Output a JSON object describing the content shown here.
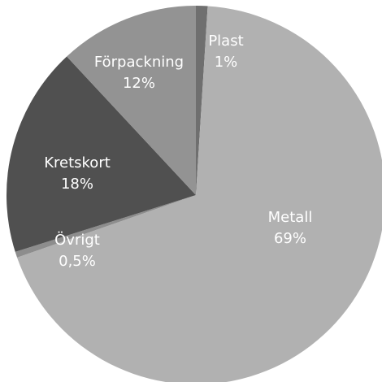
{
  "chart_data": {
    "type": "pie",
    "title": "",
    "slices": [
      {
        "label": "Plast",
        "value_label": "1%",
        "value": 1,
        "color": "#6f6f6f"
      },
      {
        "label": "Metall",
        "value_label": "69%",
        "value": 69,
        "color": "#b1b1b1"
      },
      {
        "label": "Övrigt",
        "value_label": "0,5%",
        "value": 0.5,
        "color": "#8d8d8d"
      },
      {
        "label": "Kretskort",
        "value_label": "18%",
        "value": 18,
        "color": "#505050"
      },
      {
        "label": "Förpackning",
        "value_label": "12%",
        "value": 12,
        "color": "#939393"
      }
    ],
    "legend": "none",
    "start_angle_deg": 0,
    "direction": "clockwise"
  }
}
